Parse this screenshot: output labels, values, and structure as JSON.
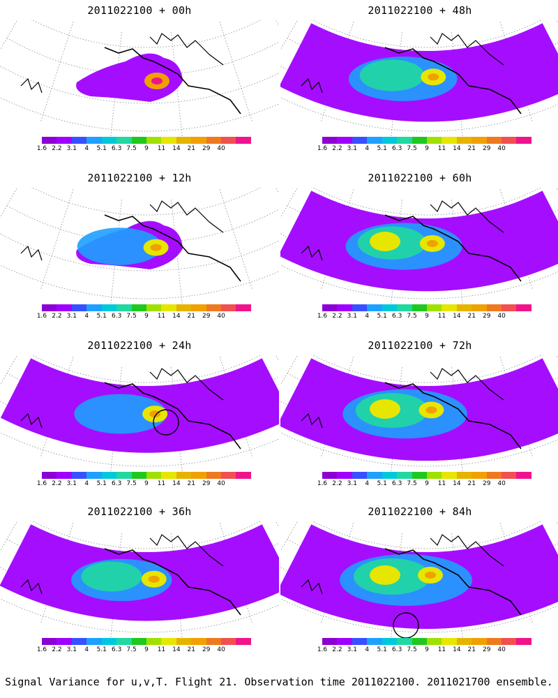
{
  "caption": "Signal Variance for u,v,T. Flight 21. Observation time 2011022100. 2011021700 ensemble.",
  "colorbar": {
    "colors": [
      "#8c00d4",
      "#a000ff",
      "#3850ff",
      "#1ea0ff",
      "#00c8dc",
      "#20d8a0",
      "#1ec81e",
      "#a0e000",
      "#e6e600",
      "#e6b400",
      "#f0a000",
      "#f07820",
      "#f05050",
      "#f0148c"
    ],
    "labels": [
      "1.6",
      "2.2",
      "3.1",
      "4",
      "5.1",
      "6.3",
      "7.5",
      "9",
      "11",
      "14",
      "21",
      "29",
      "40"
    ]
  },
  "panels": [
    {
      "title": "2011022100 + 00h",
      "stage": 0,
      "circle": false
    },
    {
      "title": "2011022100 + 12h",
      "stage": 1,
      "circle": false
    },
    {
      "title": "2011022100 + 24h",
      "stage": 2,
      "circle": true
    },
    {
      "title": "2011022100 + 36h",
      "stage": 3,
      "circle": false
    },
    {
      "title": "2011022100 + 48h",
      "stage": 4,
      "circle": false
    },
    {
      "title": "2011022100 + 60h",
      "stage": 5,
      "circle": false
    },
    {
      "title": "2011022100 + 72h",
      "stage": 6,
      "circle": false
    },
    {
      "title": "2011022100 + 84h",
      "stage": 7,
      "circle": true
    }
  ]
}
